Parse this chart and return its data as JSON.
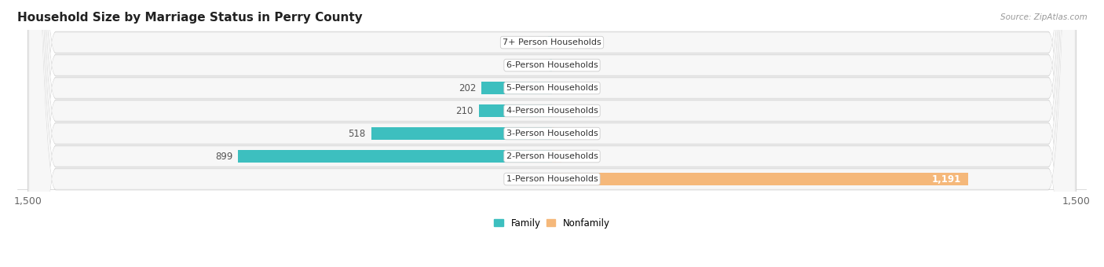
{
  "title": "Household Size by Marriage Status in Perry County",
  "source": "Source: ZipAtlas.com",
  "categories": [
    "7+ Person Households",
    "6-Person Households",
    "5-Person Households",
    "4-Person Households",
    "3-Person Households",
    "2-Person Households",
    "1-Person Households"
  ],
  "family_values": [
    12,
    6,
    202,
    210,
    518,
    899,
    0
  ],
  "nonfamily_values": [
    0,
    0,
    0,
    2,
    7,
    28,
    1191
  ],
  "family_color": "#3dbfbf",
  "nonfamily_color": "#f5b87a",
  "row_bg_color": "#ebebeb",
  "row_bg_inner": "#f7f7f7",
  "axis_limit": 1500,
  "legend_family": "Family",
  "legend_nonfamily": "Nonfamily",
  "background_color": "#ffffff",
  "title_fontsize": 11,
  "label_fontsize": 8.5,
  "axis_fontsize": 9,
  "value_fontsize": 8.5
}
